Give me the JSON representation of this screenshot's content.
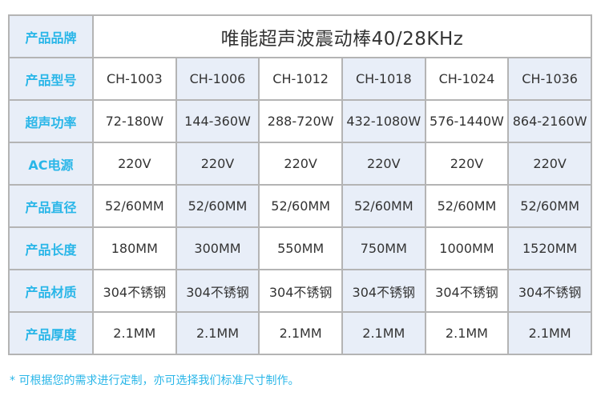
{
  "title_label": "产品品牌",
  "title": "唯能超声波震动棒40/28KHz",
  "rows": [
    {
      "label": "产品型号",
      "cells": [
        "CH-1003",
        "CH-1006",
        "CH-1012",
        "CH-1018",
        "CH-1024",
        "CH-1036"
      ]
    },
    {
      "label": "超声功率",
      "cells": [
        "72-180W",
        "144-360W",
        "288-720W",
        "432-1080W",
        "576-1440W",
        "864-2160W"
      ]
    },
    {
      "label": "AC电源",
      "cells": [
        "220V",
        "220V",
        "220V",
        "220V",
        "220V",
        "220V"
      ]
    },
    {
      "label": "产品直径",
      "cells": [
        "52/60MM",
        "52/60MM",
        "52/60MM",
        "52/60MM",
        "52/60MM",
        "52/60MM"
      ]
    },
    {
      "label": "产品长度",
      "cells": [
        "180MM",
        "300MM",
        "550MM",
        "750MM",
        "1000MM",
        "1520MM"
      ]
    },
    {
      "label": "产品材质",
      "cells": [
        "304不锈钢",
        "304不锈钢",
        "304不锈钢",
        "304不锈钢",
        "304不锈钢",
        "304不锈钢"
      ]
    },
    {
      "label": "产品厚度",
      "cells": [
        "2.1MM",
        "2.1MM",
        "2.1MM",
        "2.1MM",
        "2.1MM",
        "2.1MM"
      ]
    }
  ],
  "footnote": "* 可根据您的需求进行定制，亦可选择我们标准尺寸制作。",
  "colors": {
    "label_text": "#29b6e8",
    "shade_bg": "#e8eef8",
    "border": "#b4b4b4"
  }
}
